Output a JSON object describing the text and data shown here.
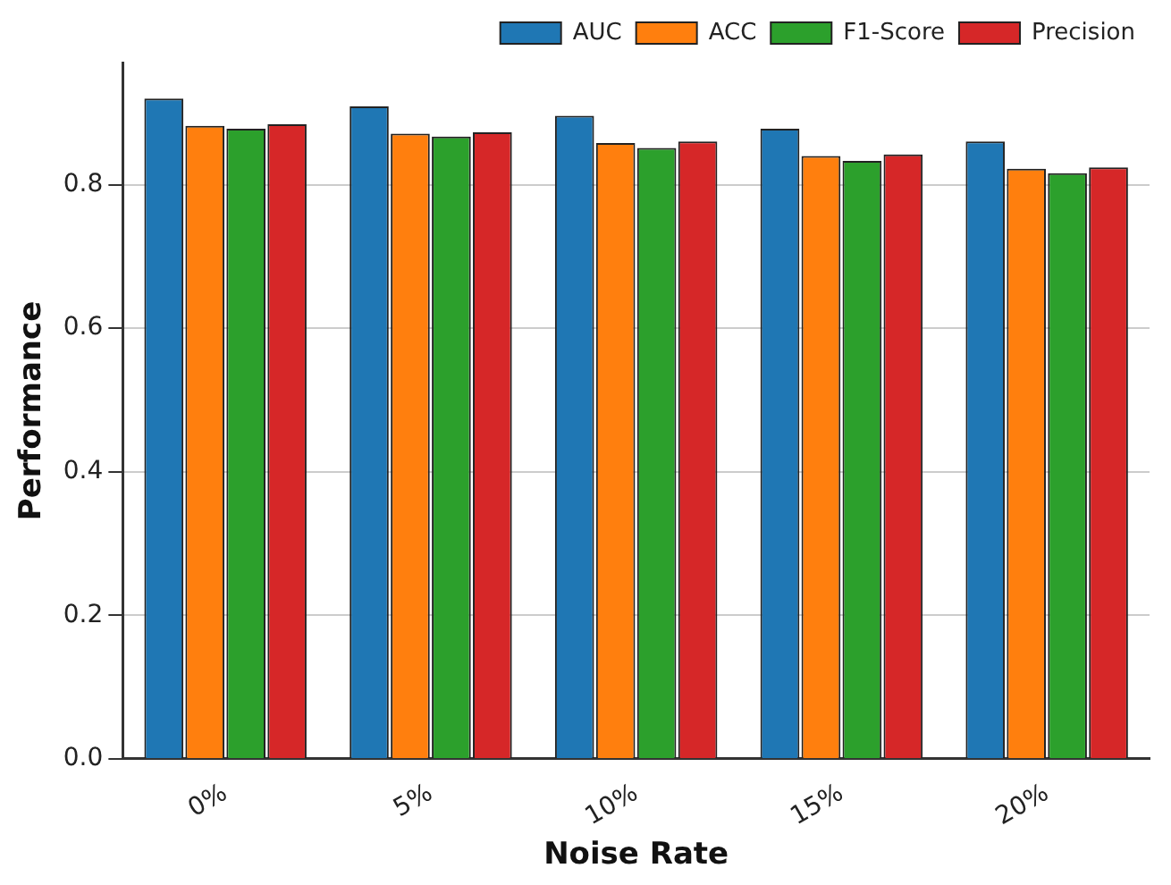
{
  "chart_data": {
    "type": "bar",
    "xlabel": "Noise Rate",
    "ylabel": "Performance",
    "categories": [
      "0%",
      "5%",
      "10%",
      "15%",
      "20%"
    ],
    "series": [
      {
        "name": "AUC",
        "color": "#1f77b4",
        "values": [
          0.92,
          0.909,
          0.896,
          0.878,
          0.86
        ]
      },
      {
        "name": "ACC",
        "color": "#ff7f0e",
        "values": [
          0.882,
          0.871,
          0.858,
          0.84,
          0.822
        ]
      },
      {
        "name": "F1-Score",
        "color": "#2ca02c",
        "values": [
          0.878,
          0.867,
          0.851,
          0.833,
          0.816
        ]
      },
      {
        "name": "Precision",
        "color": "#d62728",
        "values": [
          0.884,
          0.873,
          0.86,
          0.842,
          0.824
        ]
      }
    ],
    "ylim": [
      0,
      0.97
    ],
    "yticks": [
      {
        "value": 0,
        "label": "0.0"
      },
      0.2,
      0.4,
      0.6,
      0.8
    ],
    "grid": "y",
    "legend": "top right"
  }
}
